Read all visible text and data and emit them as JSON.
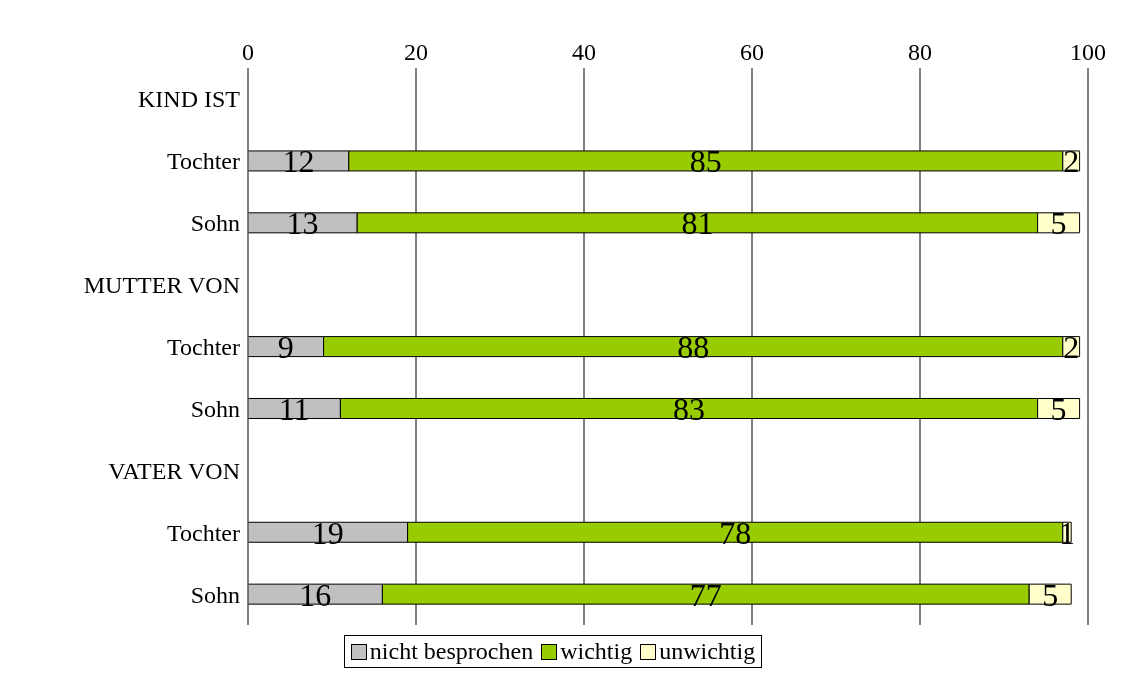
{
  "chart_data": {
    "type": "bar",
    "orientation": "horizontal",
    "stacked": true,
    "categories": [
      "KIND IST",
      "Tochter",
      "Sohn",
      "MUTTER VON",
      "Tochter",
      "Sohn",
      "VATER VON",
      "Tochter",
      "Sohn"
    ],
    "series": [
      {
        "name": "nicht besprochen",
        "color": "#c0c0c0",
        "values": [
          null,
          12,
          13,
          null,
          9,
          11,
          null,
          19,
          16
        ]
      },
      {
        "name": "wichtig",
        "color": "#99cc00",
        "values": [
          null,
          85,
          81,
          null,
          88,
          83,
          null,
          78,
          77
        ]
      },
      {
        "name": "unwichtig",
        "color": "#ffffcc",
        "values": [
          null,
          2,
          5,
          null,
          2,
          5,
          null,
          1,
          5
        ]
      }
    ],
    "xlim": [
      0,
      100
    ],
    "xticks": [
      0,
      20,
      40,
      60,
      80,
      100
    ],
    "grid": "x",
    "legend": "bottom",
    "data_labels": true
  }
}
